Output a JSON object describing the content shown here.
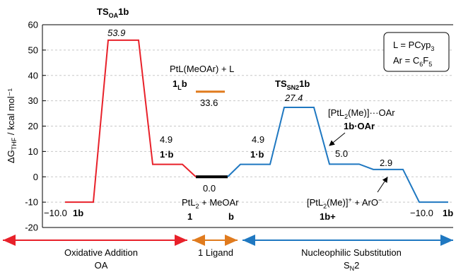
{
  "chart_data": {
    "type": "line",
    "ylabel": "ΔG_THF / kcal mol⁻¹",
    "ylim": [
      -20,
      60
    ],
    "yticks": [
      60,
      50,
      40,
      30,
      20,
      10,
      0,
      -10,
      -20
    ],
    "grid": true,
    "legend_box": {
      "line1": "L = PCyp",
      "line1_sub": "3",
      "line2": "Ar = C",
      "line2_sub1": "6",
      "line2_mid": "F",
      "line2_sub2": "5"
    },
    "colors": {
      "oxidative": "#e8212a",
      "ligand": "#e07b1e",
      "substitution": "#1f78c1",
      "ground": "#000000"
    },
    "series": [
      {
        "key": "oxidative",
        "points": [
          {
            "x": 0,
            "y": -10.0
          },
          {
            "x": 1,
            "y": 53.9
          },
          {
            "x": 2,
            "y": 4.9
          },
          {
            "x": 3,
            "y": 0.0
          }
        ]
      },
      {
        "key": "substitution",
        "points": [
          {
            "x": 3,
            "y": 0.0
          },
          {
            "x": 4,
            "y": 4.9
          },
          {
            "x": 5,
            "y": 27.4
          },
          {
            "x": 6,
            "y": 5.0
          },
          {
            "x": 7,
            "y": 2.9
          },
          {
            "x": 8,
            "y": -10.0
          }
        ]
      },
      {
        "key": "ligand",
        "points": [
          {
            "x": 3.5,
            "y": 33.6
          }
        ]
      }
    ],
    "labels": {
      "ts_oa": "TS",
      "ts_oa_sub": "OA",
      "ts_oa_tail": "1b",
      "ts_oa_val": "53.9",
      "oa_int_val": "4.9",
      "oa_int_name": "1·b",
      "start_val": "−10.0",
      "start_name": "1b",
      "ground_val": "0.0",
      "ground_text": "PtL",
      "ground_sub": "2",
      "ground_tail": " + MeOAr",
      "ground_num1": "1",
      "ground_num2": "b",
      "ligand_text": "PtL(MeOAr) + L",
      "ligand_name": "1",
      "ligand_name_sub": "L",
      "ligand_name_tail": "b",
      "ligand_val": "33.6",
      "sn_int_val": "4.9",
      "sn_int_name": "1·b",
      "ts_sn": "TS",
      "ts_sn_sub": "SN2",
      "ts_sn_tail": "1b",
      "ts_sn_val": "27.4",
      "oar_text": "[PtL",
      "oar_sub": "2",
      "oar_tail": "(Me)]···OAr",
      "oar_name": "1b·OAr",
      "oar_val": "5.0",
      "ion_val": "2.9",
      "ion_text": "[PtL",
      "ion_sub": "2",
      "ion_mid": "(Me)]",
      "ion_sup": "+",
      "ion_tail": " + ArO",
      "ion_sup2": "−",
      "ion_name": "1b+",
      "end_val": "−10.0",
      "end_name": "1b"
    },
    "regions": [
      {
        "key": "oxidative",
        "name": "Oxidative Addition",
        "abbr": "OA"
      },
      {
        "key": "ligand",
        "name": "1 Ligand",
        "abbr": ""
      },
      {
        "key": "substitution",
        "name": "Nucleophilic Substitution",
        "abbr": "S",
        "abbr_sub": "N",
        "abbr_tail": "2"
      }
    ]
  }
}
